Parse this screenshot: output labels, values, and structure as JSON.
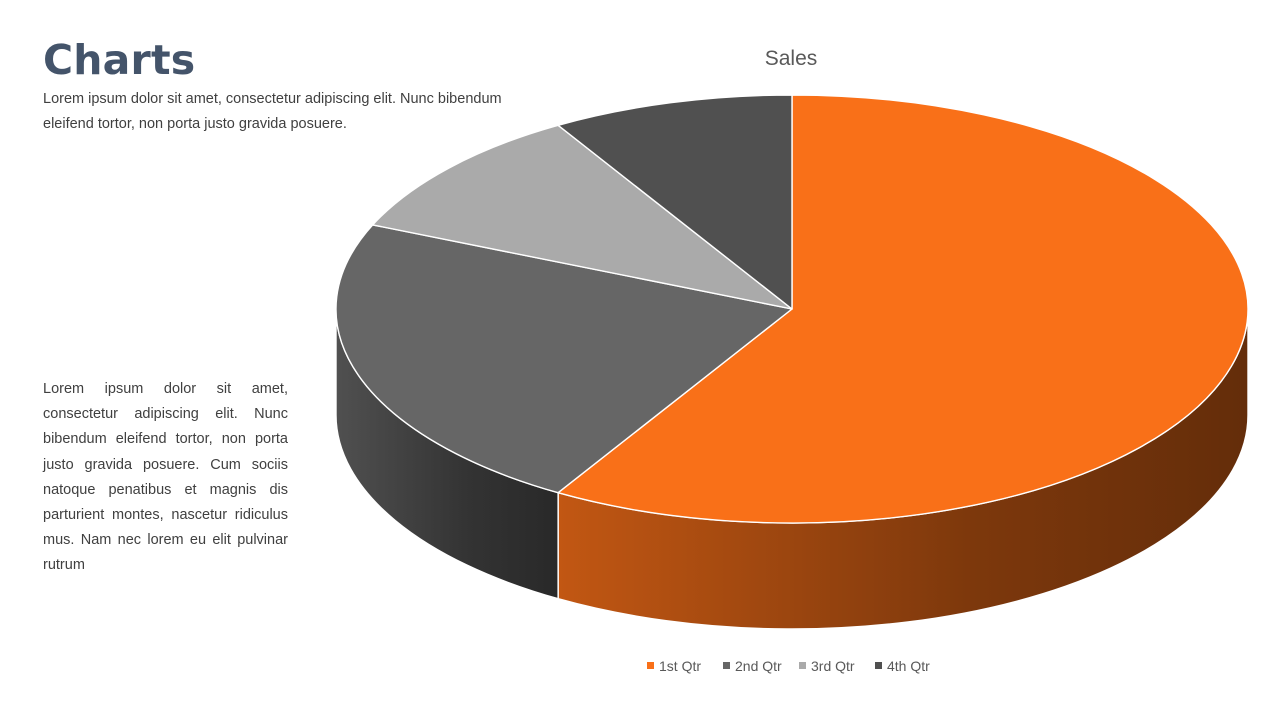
{
  "slide": {
    "title": "Charts",
    "subtitle": "Lorem ipsum dolor sit amet, consectetur adipiscing elit. Nunc bibendum eleifend tortor, non porta justo gravida posuere.",
    "body": "Lorem ipsum dolor sit amet, consectetur adipiscing elit. Nunc bibendum eleifend tortor, non porta justo gravida posuere. Cum sociis natoque penatibus et magnis dis parturient montes, nascetur ridiculus mus. Nam nec lorem eu elit pulvinar rutrum"
  },
  "chart_data": {
    "type": "pie",
    "style": "3d",
    "title": "Sales",
    "categories": [
      "1st Qtr",
      "2nd Qtr",
      "3rd Qtr",
      "4th Qtr"
    ],
    "values": [
      8.2,
      3.2,
      1.4,
      1.2
    ],
    "colors": [
      "#f97018",
      "#666666",
      "#aaaaaa",
      "#505050"
    ],
    "legend": "bottom"
  }
}
